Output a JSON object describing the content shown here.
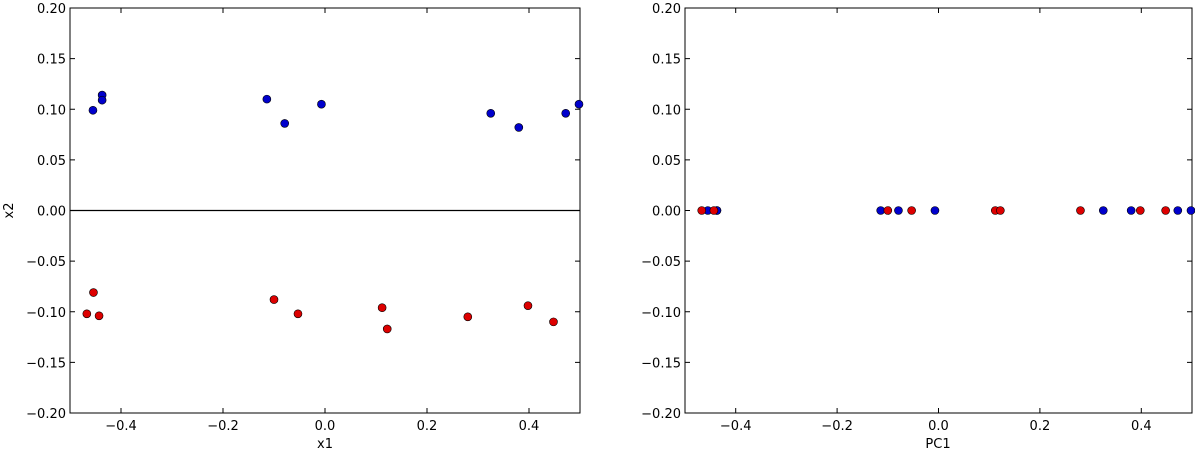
{
  "chart_data": [
    {
      "type": "scatter",
      "title": "",
      "xlabel": "x1",
      "ylabel": "x2",
      "xlim": [
        -0.5,
        0.5
      ],
      "ylim": [
        -0.2,
        0.2
      ],
      "xticks": [
        -0.4,
        -0.2,
        0.0,
        0.2,
        0.4
      ],
      "xtick_labels": [
        "−0.4",
        "−0.2",
        "0.0",
        "0.2",
        "0.4"
      ],
      "yticks": [
        0.2,
        0.15,
        0.1,
        0.05,
        0.0,
        -0.05,
        -0.1,
        -0.15,
        -0.2
      ],
      "ytick_labels": [
        "0.20",
        "0.15",
        "0.10",
        "0.05",
        "0.00",
        "−0.05",
        "−0.10",
        "−0.15",
        "−0.20"
      ],
      "reference_line_y": 0.0,
      "grid": false,
      "series": [
        {
          "color": "#0000cc",
          "points": [
            [
              -0.455,
              0.099
            ],
            [
              -0.437,
              0.114
            ],
            [
              -0.437,
              0.109
            ],
            [
              -0.114,
              0.11
            ],
            [
              -0.079,
              0.086
            ],
            [
              -0.007,
              0.105
            ],
            [
              0.325,
              0.096
            ],
            [
              0.38,
              0.082
            ],
            [
              0.472,
              0.096
            ],
            [
              0.498,
              0.105
            ]
          ]
        },
        {
          "color": "#dd0000",
          "points": [
            [
              -0.467,
              -0.102
            ],
            [
              -0.454,
              -0.081
            ],
            [
              -0.443,
              -0.104
            ],
            [
              -0.1,
              -0.088
            ],
            [
              -0.053,
              -0.102
            ],
            [
              0.112,
              -0.096
            ],
            [
              0.122,
              -0.117
            ],
            [
              0.28,
              -0.105
            ],
            [
              0.398,
              -0.094
            ],
            [
              0.448,
              -0.11
            ]
          ]
        }
      ]
    },
    {
      "type": "scatter",
      "title": "",
      "xlabel": "PC1",
      "ylabel": "",
      "xlim": [
        -0.5,
        0.5
      ],
      "ylim": [
        -0.2,
        0.2
      ],
      "xticks": [
        -0.4,
        -0.2,
        0.0,
        0.2,
        0.4
      ],
      "xtick_labels": [
        "−0.4",
        "−0.2",
        "0.0",
        "0.2",
        "0.4"
      ],
      "yticks": [
        0.2,
        0.15,
        0.1,
        0.05,
        0.0,
        -0.05,
        -0.1,
        -0.15,
        -0.2
      ],
      "ytick_labels": [
        "0.20",
        "0.15",
        "0.10",
        "0.05",
        "0.00",
        "−0.05",
        "−0.10",
        "−0.15",
        "−0.20"
      ],
      "grid": false,
      "series": [
        {
          "color": "#0000cc",
          "points": [
            [
              -0.455,
              0.0
            ],
            [
              -0.437,
              0.0
            ],
            [
              -0.437,
              0.0
            ],
            [
              -0.114,
              0.0
            ],
            [
              -0.079,
              0.0
            ],
            [
              -0.007,
              0.0
            ],
            [
              0.325,
              0.0
            ],
            [
              0.38,
              0.0
            ],
            [
              0.472,
              0.0
            ],
            [
              0.498,
              0.0
            ]
          ]
        },
        {
          "color": "#dd0000",
          "points": [
            [
              -0.467,
              0.0
            ],
            [
              -0.443,
              0.0
            ],
            [
              -0.1,
              0.0
            ],
            [
              -0.053,
              0.0
            ],
            [
              0.112,
              0.0
            ],
            [
              0.122,
              0.0
            ],
            [
              0.28,
              0.0
            ],
            [
              0.398,
              0.0
            ],
            [
              0.448,
              0.0
            ]
          ]
        }
      ]
    }
  ]
}
